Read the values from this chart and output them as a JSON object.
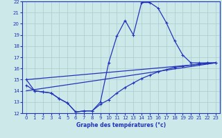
{
  "title": "Graphe des températures (°c)",
  "bg_color": "#cce8e8",
  "grid_color": "#aacccc",
  "line_color": "#2233bb",
  "xlim": [
    -0.5,
    23.5
  ],
  "ylim": [
    12,
    22
  ],
  "yticks": [
    12,
    13,
    14,
    15,
    16,
    17,
    18,
    19,
    20,
    21,
    22
  ],
  "xticks": [
    0,
    1,
    2,
    3,
    4,
    5,
    6,
    7,
    8,
    9,
    10,
    11,
    12,
    13,
    14,
    15,
    16,
    17,
    18,
    19,
    20,
    21,
    22,
    23
  ],
  "line1_x": [
    0,
    1,
    2,
    3,
    4,
    5,
    6,
    7,
    8,
    9,
    10,
    11,
    12,
    13,
    14,
    15,
    16,
    17,
    18,
    19,
    20,
    21,
    22,
    23
  ],
  "line1_y": [
    15.0,
    14.0,
    13.9,
    13.8,
    13.3,
    12.9,
    12.1,
    12.2,
    12.2,
    13.0,
    16.5,
    18.9,
    20.3,
    19.0,
    21.9,
    21.9,
    21.4,
    20.1,
    18.5,
    17.2,
    16.5,
    16.5,
    16.5,
    16.5
  ],
  "line2_x": [
    0,
    23
  ],
  "line2_y": [
    15.0,
    16.5
  ],
  "line3_x": [
    0,
    1,
    2,
    3,
    4,
    5,
    6,
    7,
    8,
    9,
    10,
    11,
    12,
    13,
    14,
    15,
    16,
    17,
    18,
    19,
    20,
    21,
    22,
    23
  ],
  "line3_y": [
    14.5,
    14.0,
    13.9,
    13.8,
    13.3,
    12.9,
    12.1,
    12.2,
    12.2,
    12.8,
    13.2,
    13.8,
    14.3,
    14.7,
    15.1,
    15.4,
    15.7,
    15.9,
    16.1,
    16.2,
    16.3,
    16.4,
    16.5,
    16.5
  ],
  "line4_x": [
    0,
    23
  ],
  "line4_y": [
    14.0,
    16.5
  ]
}
